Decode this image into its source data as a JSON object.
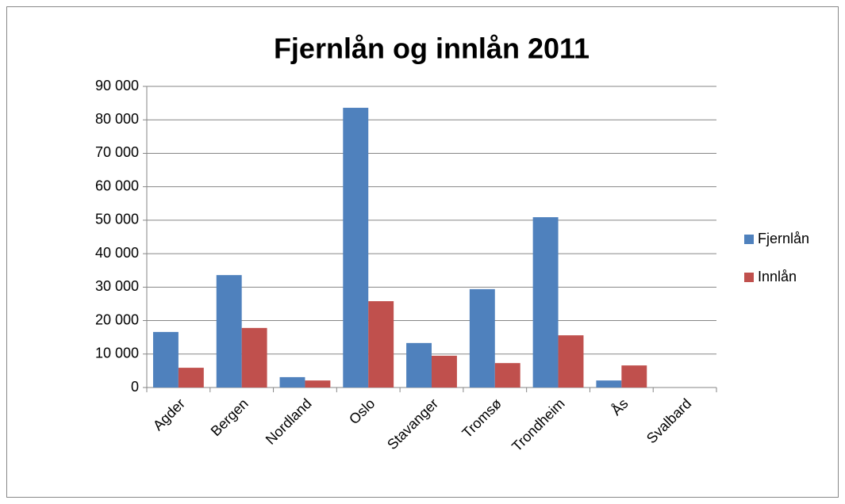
{
  "chart_data": {
    "type": "bar",
    "title": "Fjernlån og innlån 2011",
    "categories": [
      "Agder",
      "Bergen",
      "Nordland",
      "Oslo",
      "Stavanger",
      "Tromsø",
      "Trondheim",
      "Ås",
      "Svalbard"
    ],
    "series": [
      {
        "name": "Fjernlån",
        "color": "#4f81bd",
        "values": [
          16600,
          33600,
          3100,
          83600,
          13300,
          29400,
          50900,
          2100,
          0
        ]
      },
      {
        "name": "Innlån",
        "color": "#c0504d",
        "values": [
          5900,
          17800,
          2100,
          25800,
          9500,
          7300,
          15600,
          6600,
          0
        ]
      }
    ],
    "ylim": [
      0,
      90000
    ],
    "yticks": [
      {
        "value": 0,
        "label": "0"
      },
      {
        "value": 10000,
        "label": "10 000"
      },
      {
        "value": 20000,
        "label": "20 000"
      },
      {
        "value": 30000,
        "label": "30 000"
      },
      {
        "value": 40000,
        "label": "40 000"
      },
      {
        "value": 50000,
        "label": "50 000"
      },
      {
        "value": 60000,
        "label": "60 000"
      },
      {
        "value": 70000,
        "label": "70 000"
      },
      {
        "value": 80000,
        "label": "80 000"
      },
      {
        "value": 90000,
        "label": "90 000"
      }
    ],
    "grid": true,
    "legend": "right"
  }
}
